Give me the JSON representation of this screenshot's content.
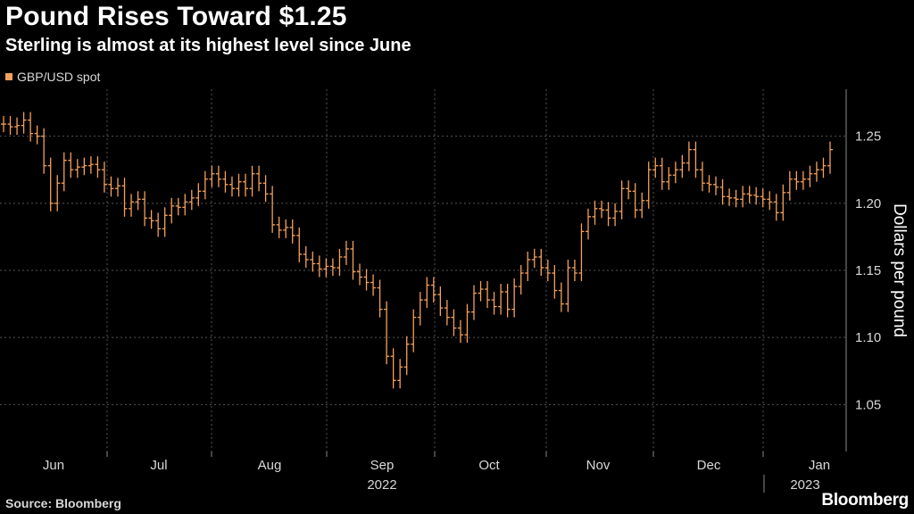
{
  "header": {
    "title": "Pound Rises Toward $1.25",
    "subtitle": "Sterling is almost at its highest level since June"
  },
  "footer": {
    "source": "Source: Bloomberg",
    "logo": "Bloomberg"
  },
  "colors": {
    "series": "#f5a15a",
    "background": "#000000",
    "grid": "#555555",
    "axis_text": "#d8d8d8"
  },
  "chart_data": {
    "type": "line",
    "style": "ohlc-bars",
    "title": "Pound Rises Toward $1.25",
    "subtitle": "Sterling is almost at its highest level since June",
    "ylabel": "Dollars per pound",
    "xlabel": "",
    "ylim": [
      1.015,
      1.285
    ],
    "yticks": [
      1.05,
      1.1,
      1.15,
      1.2,
      1.25
    ],
    "ytick_labels": [
      "1.05",
      "1.10",
      "1.15",
      "1.20",
      "1.25"
    ],
    "y_axis_side": "right",
    "x_labels": [
      "Jun",
      "Jul",
      "Aug",
      "Sep",
      "Oct",
      "Nov",
      "Dec",
      "Jan"
    ],
    "year_labels": [
      {
        "text": "2022",
        "under": "Sep"
      },
      {
        "text": "2023",
        "under": "Jan"
      }
    ],
    "grid": true,
    "legend": {
      "position": "top-left",
      "entries": [
        "GBP/USD spot"
      ]
    },
    "series": [
      {
        "name": "GBP/USD spot",
        "values": [
          1.259,
          1.257,
          1.258,
          1.262,
          1.252,
          1.25,
          1.228,
          1.2,
          1.215,
          1.232,
          1.225,
          1.227,
          1.228,
          1.229,
          1.225,
          1.214,
          1.211,
          1.213,
          1.196,
          1.201,
          1.203,
          1.189,
          1.187,
          1.181,
          1.191,
          1.198,
          1.197,
          1.201,
          1.204,
          1.209,
          1.218,
          1.222,
          1.218,
          1.214,
          1.211,
          1.216,
          1.211,
          1.222,
          1.215,
          1.207,
          1.184,
          1.18,
          1.182,
          1.176,
          1.162,
          1.158,
          1.155,
          1.151,
          1.153,
          1.152,
          1.16,
          1.166,
          1.149,
          1.145,
          1.141,
          1.137,
          1.121,
          1.086,
          1.068,
          1.078,
          1.095,
          1.115,
          1.128,
          1.139,
          1.132,
          1.122,
          1.115,
          1.107,
          1.102,
          1.119,
          1.133,
          1.136,
          1.128,
          1.123,
          1.134,
          1.121,
          1.138,
          1.148,
          1.158,
          1.16,
          1.152,
          1.148,
          1.135,
          1.125,
          1.152,
          1.148,
          1.179,
          1.19,
          1.196,
          1.195,
          1.189,
          1.194,
          1.211,
          1.209,
          1.195,
          1.202,
          1.225,
          1.228,
          1.216,
          1.221,
          1.225,
          1.23,
          1.24,
          1.225,
          1.215,
          1.214,
          1.212,
          1.205,
          1.204,
          1.203,
          1.207,
          1.206,
          1.205,
          1.203,
          1.201,
          1.193,
          1.208,
          1.218,
          1.216,
          1.218,
          1.222,
          1.225,
          1.228,
          1.24
        ]
      }
    ]
  }
}
